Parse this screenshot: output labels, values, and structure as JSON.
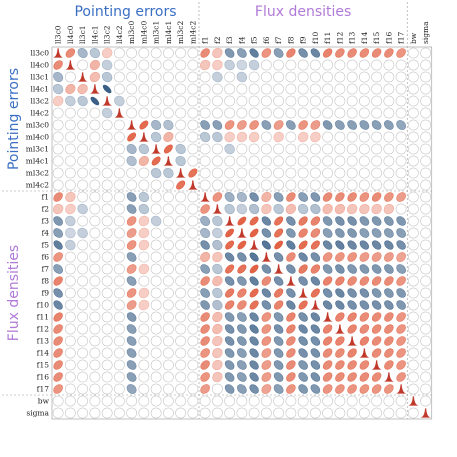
{
  "chart_data": {
    "type": "heatmap",
    "variables": [
      "ll3c0",
      "ll4c0",
      "ll3c1",
      "ll4c1",
      "ll3c2",
      "ll4c2",
      "ml3c0",
      "ml4c0",
      "ml3c1",
      "ml4c1",
      "ml3c2",
      "ml4c2",
      "f1",
      "f2",
      "f3",
      "f4",
      "f5",
      "f6",
      "f7",
      "f8",
      "f9",
      "f10",
      "f11",
      "f12",
      "f13",
      "f14",
      "f15",
      "f16",
      "f17",
      "bw",
      "sigma"
    ],
    "groups": [
      {
        "label": "Pointing errors",
        "start": 0,
        "end": 11,
        "color": "#3a6fc4"
      },
      {
        "label": "Flux densities",
        "start": 12,
        "end": 28,
        "color": "#b07ad8"
      }
    ],
    "colors": {
      "negative": "#3b5f86",
      "positive": "#e05a3c",
      "neutral": "#ffffff",
      "grid": "#c8c8c8",
      "diag": "#c0392b"
    },
    "encoding": "ellipse per cell: tilt and fill show correlation sign and strength; diagonal shows marginal density",
    "correlations": [
      {
        "i": 0,
        "j": 1,
        "r": 0.55
      },
      {
        "i": 0,
        "j": 2,
        "r": -0.3
      },
      {
        "i": 0,
        "j": 3,
        "r": -0.2
      },
      {
        "i": 0,
        "j": 4,
        "r": 0.15
      },
      {
        "i": 1,
        "j": 3,
        "r": 0.3
      },
      {
        "i": 1,
        "j": 4,
        "r": -0.15
      },
      {
        "i": 2,
        "j": 3,
        "r": 0.25
      },
      {
        "i": 2,
        "j": 4,
        "r": -0.2
      },
      {
        "i": 3,
        "j": 4,
        "r": -0.85
      },
      {
        "i": 4,
        "j": 5,
        "r": -0.15
      },
      {
        "i": 6,
        "j": 7,
        "r": 0.75
      },
      {
        "i": 6,
        "j": 8,
        "r": -0.3
      },
      {
        "i": 6,
        "j": 9,
        "r": -0.25
      },
      {
        "i": 7,
        "j": 8,
        "r": -0.2
      },
      {
        "i": 7,
        "j": 9,
        "r": 0.3
      },
      {
        "i": 8,
        "j": 9,
        "r": 0.75
      },
      {
        "i": 8,
        "j": 10,
        "r": -0.2
      },
      {
        "i": 9,
        "j": 10,
        "r": -0.2
      },
      {
        "i": 10,
        "j": 11,
        "r": 0.7
      },
      {
        "i": 0,
        "j": 12,
        "r": 0.55
      },
      {
        "i": 0,
        "j": 13,
        "r": 0.2
      },
      {
        "i": 0,
        "j": 14,
        "r": -0.5
      },
      {
        "i": 0,
        "j": 15,
        "r": -0.45
      },
      {
        "i": 0,
        "j": 16,
        "r": -0.65
      },
      {
        "i": 0,
        "j": 17,
        "r": 0.5
      },
      {
        "i": 0,
        "j": 18,
        "r": -0.45
      },
      {
        "i": 0,
        "j": 19,
        "r": 0.6
      },
      {
        "i": 0,
        "j": 20,
        "r": -0.55
      },
      {
        "i": 0,
        "j": 21,
        "r": -0.6
      },
      {
        "i": 0,
        "j": 22,
        "r": 0.6
      },
      {
        "i": 0,
        "j": 23,
        "r": 0.55
      },
      {
        "i": 0,
        "j": 24,
        "r": 0.55
      },
      {
        "i": 0,
        "j": 25,
        "r": 0.55
      },
      {
        "i": 0,
        "j": 26,
        "r": 0.55
      },
      {
        "i": 0,
        "j": 27,
        "r": 0.55
      },
      {
        "i": 0,
        "j": 28,
        "r": 0.5
      },
      {
        "i": 1,
        "j": 12,
        "r": 0.2
      },
      {
        "i": 1,
        "j": 13,
        "r": 0.15
      },
      {
        "i": 1,
        "j": 14,
        "r": -0.15
      },
      {
        "i": 1,
        "j": 15,
        "r": -0.1
      },
      {
        "i": 1,
        "j": 16,
        "r": -0.15
      },
      {
        "i": 2,
        "j": 13,
        "r": -0.15
      },
      {
        "i": 2,
        "j": 15,
        "r": -0.15
      },
      {
        "i": 6,
        "j": 12,
        "r": -0.45
      },
      {
        "i": 6,
        "j": 13,
        "r": -0.45
      },
      {
        "i": 6,
        "j": 14,
        "r": 0.5
      },
      {
        "i": 6,
        "j": 15,
        "r": 0.45
      },
      {
        "i": 6,
        "j": 16,
        "r": 0.5
      },
      {
        "i": 6,
        "j": 17,
        "r": -0.45
      },
      {
        "i": 6,
        "j": 18,
        "r": 0.45
      },
      {
        "i": 6,
        "j": 19,
        "r": -0.45
      },
      {
        "i": 6,
        "j": 20,
        "r": 0.5
      },
      {
        "i": 6,
        "j": 21,
        "r": 0.45
      },
      {
        "i": 6,
        "j": 22,
        "r": -0.5
      },
      {
        "i": 6,
        "j": 23,
        "r": -0.45
      },
      {
        "i": 6,
        "j": 24,
        "r": -0.45
      },
      {
        "i": 6,
        "j": 25,
        "r": -0.45
      },
      {
        "i": 6,
        "j": 26,
        "r": -0.45
      },
      {
        "i": 6,
        "j": 27,
        "r": -0.45
      },
      {
        "i": 6,
        "j": 28,
        "r": -0.4
      },
      {
        "i": 7,
        "j": 12,
        "r": -0.2
      },
      {
        "i": 7,
        "j": 13,
        "r": -0.2
      },
      {
        "i": 7,
        "j": 14,
        "r": 0.15
      },
      {
        "i": 7,
        "j": 15,
        "r": 0.15
      },
      {
        "i": 7,
        "j": 16,
        "r": 0.15
      },
      {
        "i": 7,
        "j": 18,
        "r": 0.15
      },
      {
        "i": 7,
        "j": 20,
        "r": 0.15
      },
      {
        "i": 7,
        "j": 21,
        "r": 0.15
      },
      {
        "i": 8,
        "j": 14,
        "r": -0.15
      },
      {
        "i": 12,
        "j": 13,
        "r": 0.5
      },
      {
        "i": 12,
        "j": 14,
        "r": -0.35
      },
      {
        "i": 12,
        "j": 15,
        "r": -0.3
      },
      {
        "i": 12,
        "j": 16,
        "r": -0.55
      },
      {
        "i": 12,
        "j": 17,
        "r": 0.3
      },
      {
        "i": 12,
        "j": 18,
        "r": -0.45
      },
      {
        "i": 12,
        "j": 19,
        "r": 0.55
      },
      {
        "i": 12,
        "j": 20,
        "r": -0.45
      },
      {
        "i": 12,
        "j": 21,
        "r": -0.5
      },
      {
        "i": 12,
        "j": 22,
        "r": 0.55
      },
      {
        "i": 12,
        "j": 23,
        "r": 0.55
      },
      {
        "i": 12,
        "j": 24,
        "r": 0.55
      },
      {
        "i": 12,
        "j": 25,
        "r": 0.5
      },
      {
        "i": 12,
        "j": 26,
        "r": 0.55
      },
      {
        "i": 12,
        "j": 27,
        "r": 0.5
      },
      {
        "i": 12,
        "j": 28,
        "r": 0.45
      },
      {
        "i": 13,
        "j": 14,
        "r": -0.2
      },
      {
        "i": 13,
        "j": 15,
        "r": -0.15
      },
      {
        "i": 13,
        "j": 16,
        "r": -0.25
      },
      {
        "i": 13,
        "j": 17,
        "r": 0.2
      },
      {
        "i": 13,
        "j": 18,
        "r": -0.2
      },
      {
        "i": 13,
        "j": 19,
        "r": 0.25
      },
      {
        "i": 13,
        "j": 20,
        "r": -0.2
      },
      {
        "i": 13,
        "j": 21,
        "r": -0.25
      },
      {
        "i": 13,
        "j": 22,
        "r": 0.25
      },
      {
        "i": 13,
        "j": 23,
        "r": 0.25
      },
      {
        "i": 13,
        "j": 24,
        "r": 0.2
      },
      {
        "i": 13,
        "j": 25,
        "r": 0.2
      },
      {
        "i": 13,
        "j": 26,
        "r": 0.2
      },
      {
        "i": 13,
        "j": 27,
        "r": 0.2
      },
      {
        "i": 14,
        "j": 15,
        "r": 0.8
      },
      {
        "i": 14,
        "j": 16,
        "r": 0.75
      },
      {
        "i": 14,
        "j": 17,
        "r": -0.6
      },
      {
        "i": 14,
        "j": 18,
        "r": 0.7
      },
      {
        "i": 14,
        "j": 19,
        "r": -0.55
      },
      {
        "i": 14,
        "j": 20,
        "r": 0.65
      },
      {
        "i": 14,
        "j": 21,
        "r": 0.6
      },
      {
        "i": 14,
        "j": 22,
        "r": -0.5
      },
      {
        "i": 14,
        "j": 23,
        "r": -0.55
      },
      {
        "i": 14,
        "j": 24,
        "r": -0.55
      },
      {
        "i": 14,
        "j": 25,
        "r": -0.5
      },
      {
        "i": 14,
        "j": 26,
        "r": -0.5
      },
      {
        "i": 14,
        "j": 27,
        "r": -0.5
      },
      {
        "i": 14,
        "j": 28,
        "r": -0.5
      },
      {
        "i": 15,
        "j": 16,
        "r": 0.8
      },
      {
        "i": 15,
        "j": 17,
        "r": -0.55
      },
      {
        "i": 15,
        "j": 18,
        "r": 0.7
      },
      {
        "i": 15,
        "j": 19,
        "r": -0.5
      },
      {
        "i": 15,
        "j": 20,
        "r": 0.6
      },
      {
        "i": 15,
        "j": 21,
        "r": 0.55
      },
      {
        "i": 15,
        "j": 22,
        "r": -0.45
      },
      {
        "i": 15,
        "j": 23,
        "r": -0.5
      },
      {
        "i": 15,
        "j": 24,
        "r": -0.5
      },
      {
        "i": 15,
        "j": 25,
        "r": -0.45
      },
      {
        "i": 15,
        "j": 26,
        "r": -0.45
      },
      {
        "i": 15,
        "j": 27,
        "r": -0.45
      },
      {
        "i": 15,
        "j": 28,
        "r": -0.45
      },
      {
        "i": 16,
        "j": 17,
        "r": -0.7
      },
      {
        "i": 16,
        "j": 18,
        "r": 0.8
      },
      {
        "i": 16,
        "j": 19,
        "r": -0.65
      },
      {
        "i": 16,
        "j": 20,
        "r": 0.75
      },
      {
        "i": 16,
        "j": 21,
        "r": 0.7
      },
      {
        "i": 16,
        "j": 22,
        "r": -0.6
      },
      {
        "i": 16,
        "j": 23,
        "r": -0.65
      },
      {
        "i": 16,
        "j": 24,
        "r": -0.6
      },
      {
        "i": 16,
        "j": 25,
        "r": -0.6
      },
      {
        "i": 16,
        "j": 26,
        "r": -0.6
      },
      {
        "i": 16,
        "j": 27,
        "r": -0.6
      },
      {
        "i": 16,
        "j": 28,
        "r": -0.55
      },
      {
        "i": 17,
        "j": 18,
        "r": -0.55
      },
      {
        "i": 17,
        "j": 19,
        "r": 0.55
      },
      {
        "i": 17,
        "j": 20,
        "r": -0.6
      },
      {
        "i": 17,
        "j": 21,
        "r": -0.55
      },
      {
        "i": 17,
        "j": 22,
        "r": 0.5
      },
      {
        "i": 17,
        "j": 23,
        "r": 0.5
      },
      {
        "i": 17,
        "j": 24,
        "r": 0.5
      },
      {
        "i": 17,
        "j": 25,
        "r": 0.45
      },
      {
        "i": 17,
        "j": 26,
        "r": 0.45
      },
      {
        "i": 17,
        "j": 27,
        "r": 0.45
      },
      {
        "i": 17,
        "j": 28,
        "r": 0.4
      },
      {
        "i": 18,
        "j": 19,
        "r": -0.55
      },
      {
        "i": 18,
        "j": 20,
        "r": 0.65
      },
      {
        "i": 18,
        "j": 21,
        "r": 0.6
      },
      {
        "i": 18,
        "j": 22,
        "r": -0.5
      },
      {
        "i": 18,
        "j": 23,
        "r": -0.55
      },
      {
        "i": 18,
        "j": 24,
        "r": -0.5
      },
      {
        "i": 18,
        "j": 25,
        "r": -0.5
      },
      {
        "i": 18,
        "j": 26,
        "r": -0.5
      },
      {
        "i": 18,
        "j": 27,
        "r": -0.5
      },
      {
        "i": 18,
        "j": 28,
        "r": -0.45
      },
      {
        "i": 19,
        "j": 20,
        "r": -0.55
      },
      {
        "i": 19,
        "j": 21,
        "r": -0.6
      },
      {
        "i": 19,
        "j": 22,
        "r": 0.6
      },
      {
        "i": 19,
        "j": 23,
        "r": 0.6
      },
      {
        "i": 19,
        "j": 24,
        "r": 0.55
      },
      {
        "i": 19,
        "j": 25,
        "r": 0.55
      },
      {
        "i": 19,
        "j": 26,
        "r": 0.55
      },
      {
        "i": 19,
        "j": 27,
        "r": 0.55
      },
      {
        "i": 19,
        "j": 28,
        "r": 0.5
      },
      {
        "i": 20,
        "j": 21,
        "r": 0.7
      },
      {
        "i": 20,
        "j": 22,
        "r": -0.55
      },
      {
        "i": 20,
        "j": 23,
        "r": -0.6
      },
      {
        "i": 20,
        "j": 24,
        "r": -0.55
      },
      {
        "i": 20,
        "j": 25,
        "r": -0.55
      },
      {
        "i": 20,
        "j": 26,
        "r": -0.5
      },
      {
        "i": 20,
        "j": 27,
        "r": -0.5
      },
      {
        "i": 20,
        "j": 28,
        "r": -0.5
      },
      {
        "i": 21,
        "j": 22,
        "r": -0.6
      },
      {
        "i": 21,
        "j": 23,
        "r": -0.6
      },
      {
        "i": 21,
        "j": 24,
        "r": -0.55
      },
      {
        "i": 21,
        "j": 25,
        "r": -0.55
      },
      {
        "i": 21,
        "j": 26,
        "r": -0.55
      },
      {
        "i": 21,
        "j": 27,
        "r": -0.55
      },
      {
        "i": 21,
        "j": 28,
        "r": -0.5
      },
      {
        "i": 22,
        "j": 23,
        "r": 0.6
      },
      {
        "i": 22,
        "j": 24,
        "r": 0.6
      },
      {
        "i": 22,
        "j": 25,
        "r": 0.55
      },
      {
        "i": 22,
        "j": 26,
        "r": 0.55
      },
      {
        "i": 22,
        "j": 27,
        "r": 0.55
      },
      {
        "i": 22,
        "j": 28,
        "r": 0.5
      },
      {
        "i": 23,
        "j": 24,
        "r": 0.6
      },
      {
        "i": 23,
        "j": 25,
        "r": 0.55
      },
      {
        "i": 23,
        "j": 26,
        "r": 0.55
      },
      {
        "i": 23,
        "j": 27,
        "r": 0.55
      },
      {
        "i": 23,
        "j": 28,
        "r": 0.5
      },
      {
        "i": 24,
        "j": 25,
        "r": 0.6
      },
      {
        "i": 24,
        "j": 26,
        "r": 0.55
      },
      {
        "i": 24,
        "j": 27,
        "r": 0.55
      },
      {
        "i": 24,
        "j": 28,
        "r": 0.5
      },
      {
        "i": 25,
        "j": 26,
        "r": 0.55
      },
      {
        "i": 25,
        "j": 27,
        "r": 0.55
      },
      {
        "i": 25,
        "j": 28,
        "r": 0.5
      },
      {
        "i": 26,
        "j": 27,
        "r": 0.55
      },
      {
        "i": 26,
        "j": 28,
        "r": 0.5
      },
      {
        "i": 27,
        "j": 28,
        "r": 0.5
      }
    ]
  }
}
